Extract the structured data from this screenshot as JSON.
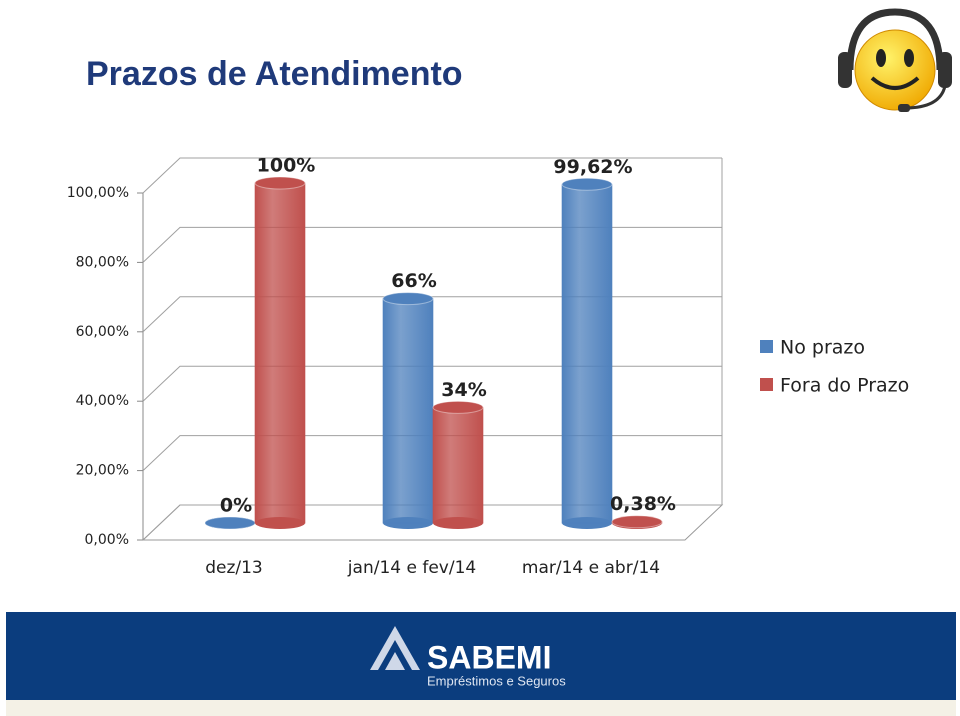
{
  "chart_data": {
    "type": "cylinder-bar",
    "title": "Prazos de Atendimento",
    "categories": [
      "dez/13",
      "jan/14 e fev/14",
      "mar/14 e abr/14"
    ],
    "series": [
      {
        "name": "No prazo",
        "color": "#4f81bd",
        "values": [
          0,
          66,
          99.62
        ],
        "value_labels": [
          "0%",
          "66%",
          "99,62%"
        ]
      },
      {
        "name": "Fora do Prazo",
        "color": "#c0504d",
        "values": [
          100,
          34,
          0.38
        ],
        "value_labels": [
          "100%",
          "34%",
          "0,38%"
        ]
      }
    ],
    "ylim": [
      0,
      100
    ],
    "yticks": [
      {
        "value": 0,
        "label": "0,00%"
      },
      {
        "value": 20,
        "label": "20,00%"
      },
      {
        "value": 40,
        "label": "40,00%"
      },
      {
        "value": 60,
        "label": "60,00%"
      },
      {
        "value": 80,
        "label": "80,00%"
      },
      {
        "value": 100,
        "label": "100,00%"
      }
    ],
    "grid": true,
    "legend": "right"
  },
  "footer": {
    "brand": "SABEMI",
    "tagline": "Empréstimos e Seguros"
  }
}
